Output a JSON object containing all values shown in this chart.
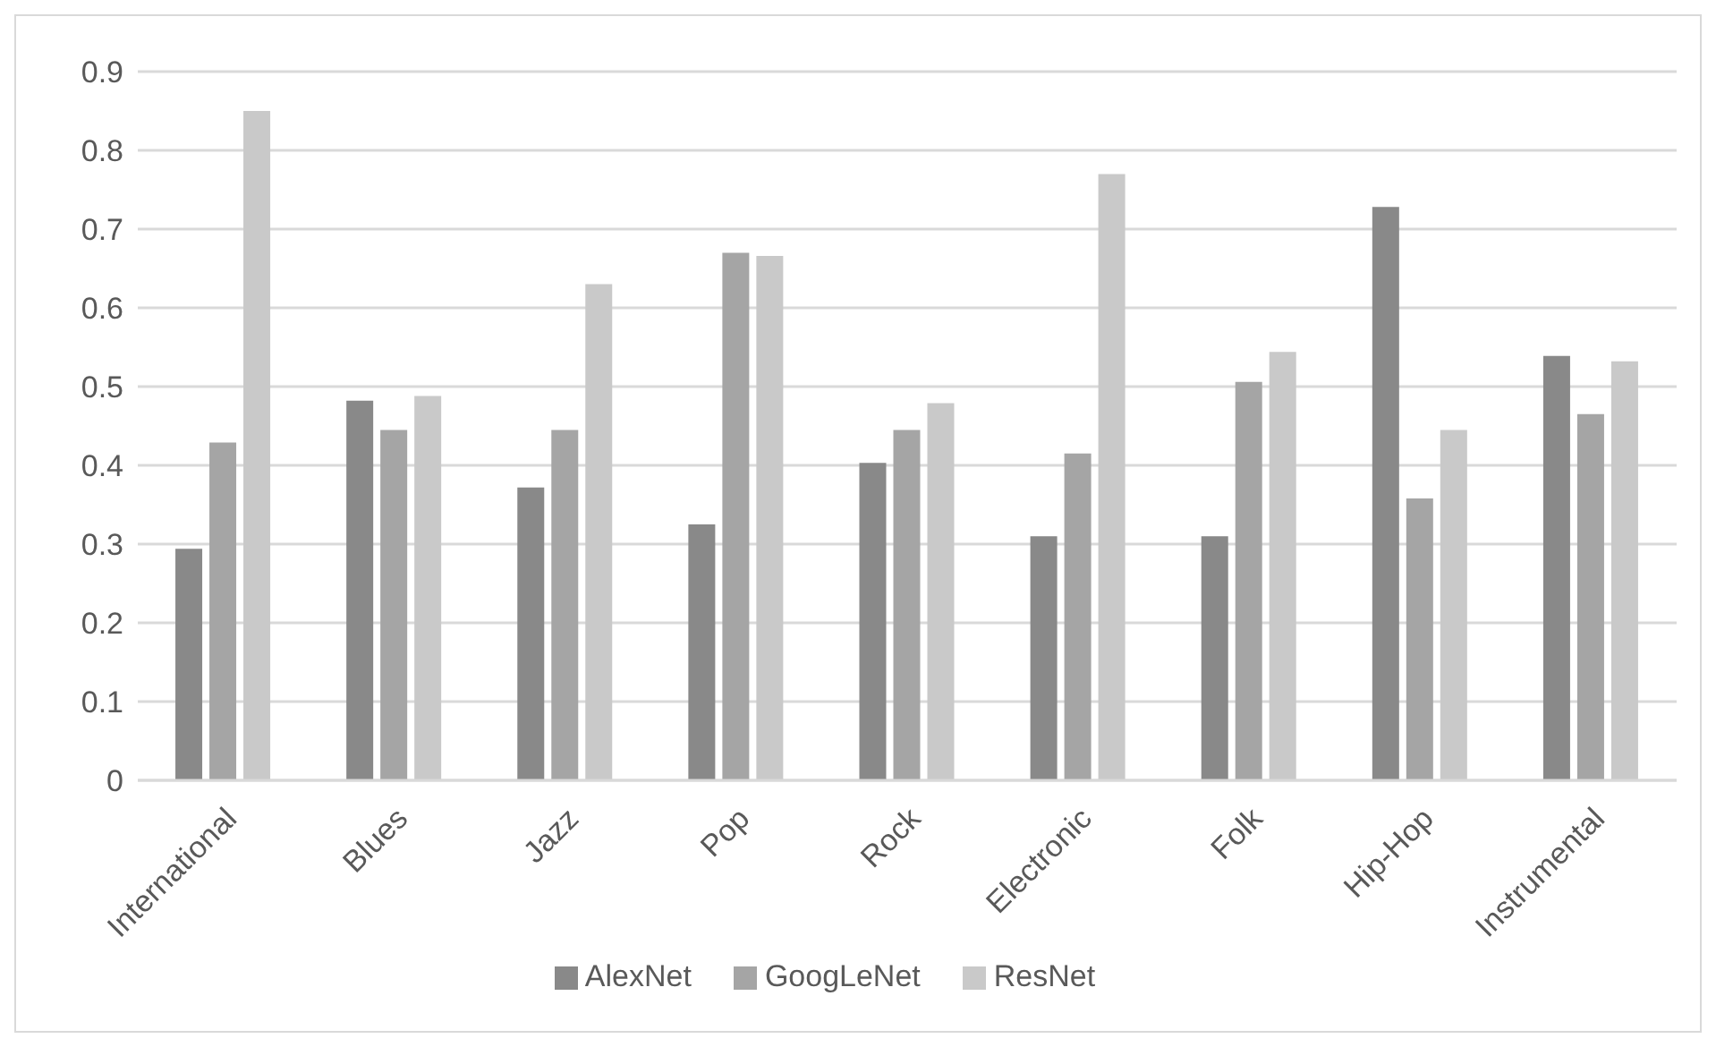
{
  "chart_data": {
    "type": "bar",
    "categories": [
      "International",
      "Blues",
      "Jazz",
      "Pop",
      "Rock",
      "Electronic",
      "Folk",
      "Hip-Hop",
      "Instrumental"
    ],
    "series": [
      {
        "name": "AlexNet",
        "color": "#898989",
        "values": [
          0.294,
          0.482,
          0.372,
          0.325,
          0.403,
          0.31,
          0.31,
          0.728,
          0.539
        ]
      },
      {
        "name": "GoogLeNet",
        "color": "#a5a5a5",
        "values": [
          0.429,
          0.445,
          0.445,
          0.67,
          0.445,
          0.415,
          0.506,
          0.358,
          0.465
        ]
      },
      {
        "name": "ResNet",
        "color": "#c9c9c9",
        "values": [
          0.85,
          0.488,
          0.63,
          0.666,
          0.479,
          0.77,
          0.544,
          0.445,
          0.532
        ]
      }
    ],
    "ylim": [
      0,
      0.9
    ],
    "yticks": [
      0,
      0.1,
      0.2,
      0.3,
      0.4,
      0.5,
      0.6,
      0.7,
      0.8,
      0.9
    ],
    "grid": "y",
    "legend": "bottom"
  }
}
